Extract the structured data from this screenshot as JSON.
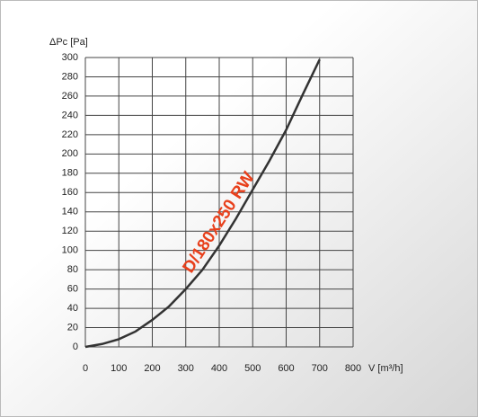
{
  "chart_data": {
    "type": "line",
    "y_label": "ΔPc [Pa]",
    "x_label": "V [m³/h]",
    "x": [
      0,
      50,
      100,
      150,
      200,
      250,
      300,
      350,
      400,
      450,
      500,
      550,
      600,
      650,
      700
    ],
    "series": [
      {
        "name": "D/180x250 RW",
        "color": "#333333",
        "label_color": "#e8401c",
        "values": [
          0,
          3,
          8,
          16,
          28,
          42,
          60,
          80,
          105,
          133,
          163,
          193,
          225,
          262,
          298
        ]
      }
    ],
    "xlim": [
      0,
      800
    ],
    "xticks": [
      0,
      100,
      200,
      300,
      400,
      500,
      600,
      700,
      800
    ],
    "ylim": [
      0,
      300
    ],
    "yticks": [
      0,
      20,
      40,
      60,
      80,
      100,
      120,
      140,
      160,
      180,
      200,
      220,
      240,
      260,
      280,
      300
    ],
    "grid": true
  }
}
